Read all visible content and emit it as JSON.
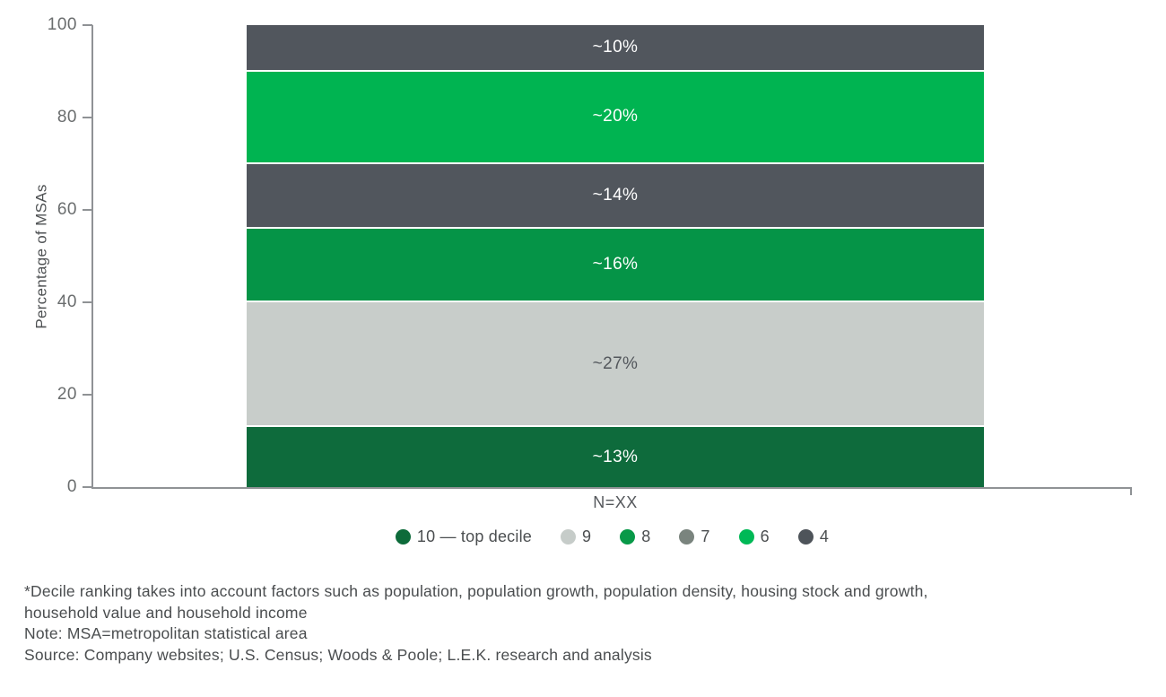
{
  "chart_data": {
    "type": "bar",
    "stacked": true,
    "orientation": "vertical",
    "title": "",
    "ylabel": "Percentage of MSAs",
    "xlabel": "",
    "x_category_label": "N=XX",
    "categories": [
      "N=XX"
    ],
    "ylim": [
      0,
      100
    ],
    "yticks": [
      0,
      20,
      40,
      60,
      80,
      100
    ],
    "grid": false,
    "legend_position": "bottom",
    "axis_color": "#8f9295",
    "series_bottom_to_top": [
      {
        "decile": "10",
        "legend_label": "10 — top decile",
        "value": 13,
        "bar_label": "~13%",
        "color": "#0e6b3c",
        "legend_color": "#0d6b3a",
        "label_color": "#ffffff"
      },
      {
        "decile": "9",
        "legend_label": "9",
        "value": 27,
        "bar_label": "~27%",
        "color": "#c8cdca",
        "legend_color": "#c6ccc9",
        "label_color": "#53575c"
      },
      {
        "decile": "8",
        "legend_label": "8",
        "value": 16,
        "bar_label": "~16%",
        "color": "#059447",
        "legend_color": "#089948",
        "label_color": "#ffffff"
      },
      {
        "decile": "7",
        "legend_label": "7",
        "value": 14,
        "bar_label": "~14%",
        "color": "#51565d",
        "legend_color": "#7a847e",
        "label_color": "#ffffff"
      },
      {
        "decile": "6",
        "legend_label": "6",
        "value": 20,
        "bar_label": "~20%",
        "color": "#00b451",
        "legend_color": "#00b956",
        "label_color": "#ffffff"
      },
      {
        "decile": "4",
        "legend_label": "4",
        "value": 10,
        "bar_label": "~10%",
        "color": "#51565d",
        "legend_color": "#4e545a",
        "label_color": "#ffffff"
      }
    ]
  },
  "notes": {
    "lines": [
      "*Decile ranking takes into account factors such as population, population growth, population density, housing stock and growth,",
      "household value and household income",
      "Note: MSA=metropolitan statistical area",
      "Source: Company websites; U.S. Census; Woods & Poole; L.E.K. research and analysis"
    ]
  }
}
